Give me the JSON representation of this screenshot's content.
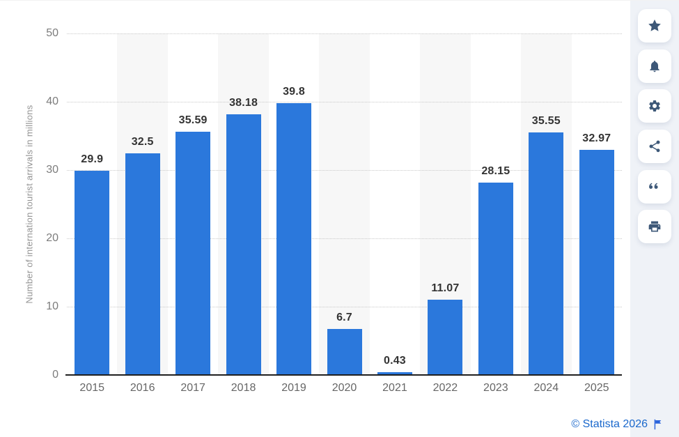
{
  "chart_data": {
    "type": "bar",
    "title": "",
    "categories": [
      "2015",
      "2016",
      "2017",
      "2018",
      "2019",
      "2020",
      "2021",
      "2022",
      "2023",
      "2024",
      "2025"
    ],
    "values": [
      29.9,
      32.5,
      35.59,
      38.18,
      39.8,
      6.7,
      0.43,
      11.07,
      28.15,
      35.55,
      32.97
    ],
    "value_labels": [
      "29.9",
      "32.5",
      "35.59",
      "38.18",
      "39.8",
      "6.7",
      "0.43",
      "11.07",
      "28.15",
      "35.55",
      "32.97"
    ],
    "xlabel": "",
    "ylabel": "Number of internation tourist arrivals in millions",
    "ylim": [
      0,
      50
    ],
    "yticks": [
      0,
      10,
      20,
      30,
      40,
      50
    ],
    "grid": "horizontal-dotted",
    "legend": "none",
    "striped_columns": [
      "2016",
      "2018",
      "2020",
      "2022",
      "2024"
    ],
    "colors": {
      "bar": "#2b78dc",
      "stripe": "#f7f7f7",
      "gridline": "#c9c9c9",
      "axis_line": "#1f1f1f",
      "tick_label": "#7c7c7c",
      "x_label": "#666666",
      "value_label": "#333333"
    }
  },
  "sidebar": {
    "background": "#eff2f7",
    "icon_color": "#3d5878",
    "buttons": [
      {
        "id": "favorite",
        "icon": "star-icon"
      },
      {
        "id": "notifications",
        "icon": "bell-icon"
      },
      {
        "id": "settings",
        "icon": "gear-icon"
      },
      {
        "id": "share",
        "icon": "share-icon"
      },
      {
        "id": "cite",
        "icon": "quote-icon"
      },
      {
        "id": "print",
        "icon": "printer-icon"
      }
    ]
  },
  "footer": {
    "credit_text": "© Statista 2026",
    "credit_color": "#1a68cc",
    "flag_icon": "flag-icon"
  }
}
